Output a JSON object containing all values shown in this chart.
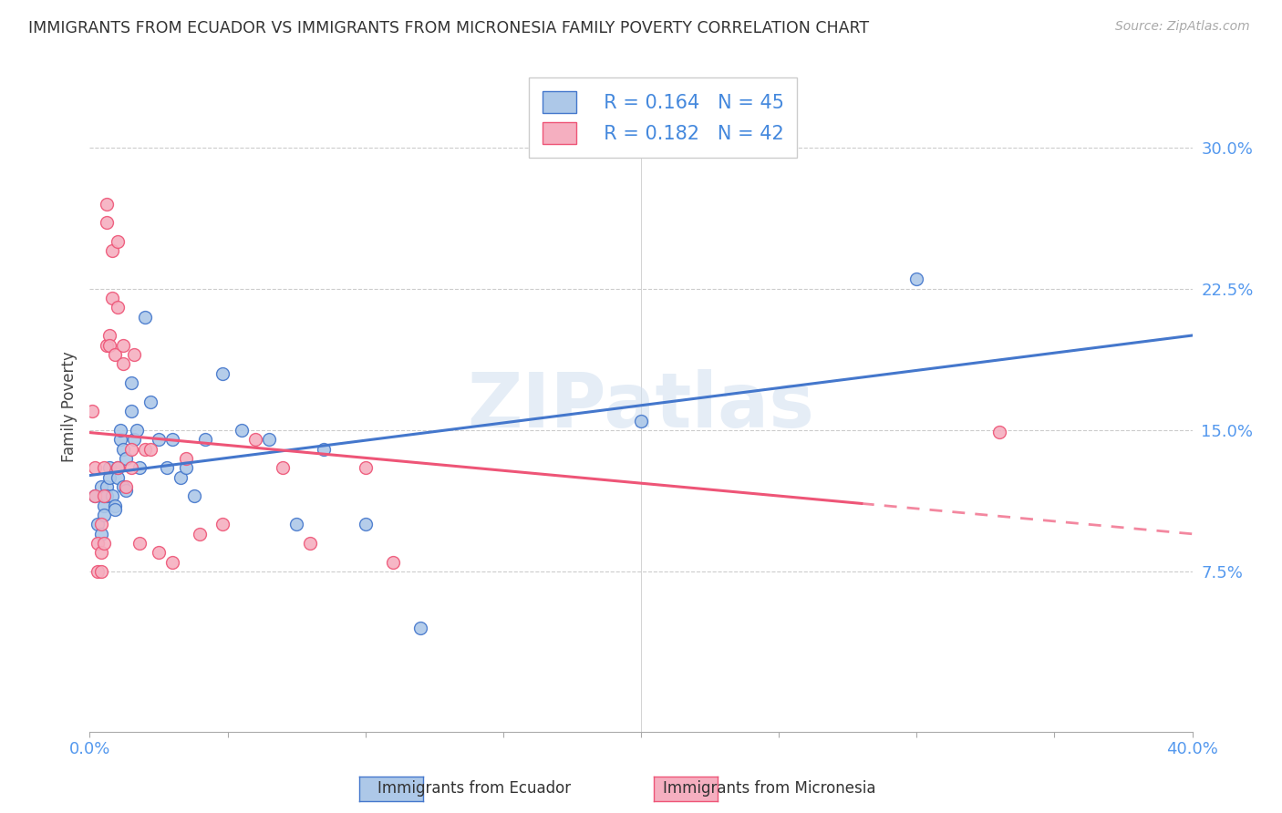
{
  "title": "IMMIGRANTS FROM ECUADOR VS IMMIGRANTS FROM MICRONESIA FAMILY POVERTY CORRELATION CHART",
  "source": "Source: ZipAtlas.com",
  "ylabel": "Family Poverty",
  "yticks": [
    0.075,
    0.15,
    0.225,
    0.3
  ],
  "ytick_labels": [
    "7.5%",
    "15.0%",
    "22.5%",
    "30.0%"
  ],
  "xlim": [
    0.0,
    0.4
  ],
  "ylim": [
    -0.01,
    0.335
  ],
  "ecuador_color": "#adc8e8",
  "micronesia_color": "#f5afc0",
  "ecuador_line_color": "#4477cc",
  "micronesia_line_color": "#ee5577",
  "watermark": "ZIPatlas",
  "legend_R_ecuador": "R = 0.164",
  "legend_N_ecuador": "N = 45",
  "legend_R_micronesia": "R = 0.182",
  "legend_N_micronesia": "N = 42",
  "ecuador_x": [
    0.002,
    0.003,
    0.004,
    0.004,
    0.005,
    0.005,
    0.005,
    0.006,
    0.006,
    0.007,
    0.007,
    0.008,
    0.009,
    0.009,
    0.01,
    0.01,
    0.011,
    0.011,
    0.012,
    0.012,
    0.013,
    0.013,
    0.015,
    0.015,
    0.016,
    0.017,
    0.018,
    0.02,
    0.022,
    0.025,
    0.028,
    0.03,
    0.033,
    0.035,
    0.038,
    0.042,
    0.048,
    0.055,
    0.065,
    0.075,
    0.085,
    0.1,
    0.12,
    0.2,
    0.3
  ],
  "ecuador_y": [
    0.115,
    0.1,
    0.12,
    0.095,
    0.11,
    0.115,
    0.105,
    0.12,
    0.115,
    0.13,
    0.125,
    0.115,
    0.11,
    0.108,
    0.125,
    0.13,
    0.145,
    0.15,
    0.14,
    0.12,
    0.135,
    0.118,
    0.175,
    0.16,
    0.145,
    0.15,
    0.13,
    0.21,
    0.165,
    0.145,
    0.13,
    0.145,
    0.125,
    0.13,
    0.115,
    0.145,
    0.18,
    0.15,
    0.145,
    0.1,
    0.14,
    0.1,
    0.045,
    0.155,
    0.23
  ],
  "micronesia_x": [
    0.001,
    0.002,
    0.002,
    0.003,
    0.003,
    0.004,
    0.004,
    0.004,
    0.005,
    0.005,
    0.005,
    0.006,
    0.006,
    0.006,
    0.007,
    0.007,
    0.008,
    0.008,
    0.009,
    0.01,
    0.01,
    0.01,
    0.012,
    0.012,
    0.013,
    0.015,
    0.015,
    0.016,
    0.018,
    0.02,
    0.022,
    0.025,
    0.03,
    0.035,
    0.04,
    0.048,
    0.06,
    0.07,
    0.08,
    0.1,
    0.11,
    0.33
  ],
  "micronesia_y": [
    0.16,
    0.13,
    0.115,
    0.09,
    0.075,
    0.085,
    0.1,
    0.075,
    0.13,
    0.115,
    0.09,
    0.27,
    0.26,
    0.195,
    0.2,
    0.195,
    0.245,
    0.22,
    0.19,
    0.25,
    0.215,
    0.13,
    0.195,
    0.185,
    0.12,
    0.14,
    0.13,
    0.19,
    0.09,
    0.14,
    0.14,
    0.085,
    0.08,
    0.135,
    0.095,
    0.1,
    0.145,
    0.13,
    0.09,
    0.13,
    0.08,
    0.149
  ]
}
